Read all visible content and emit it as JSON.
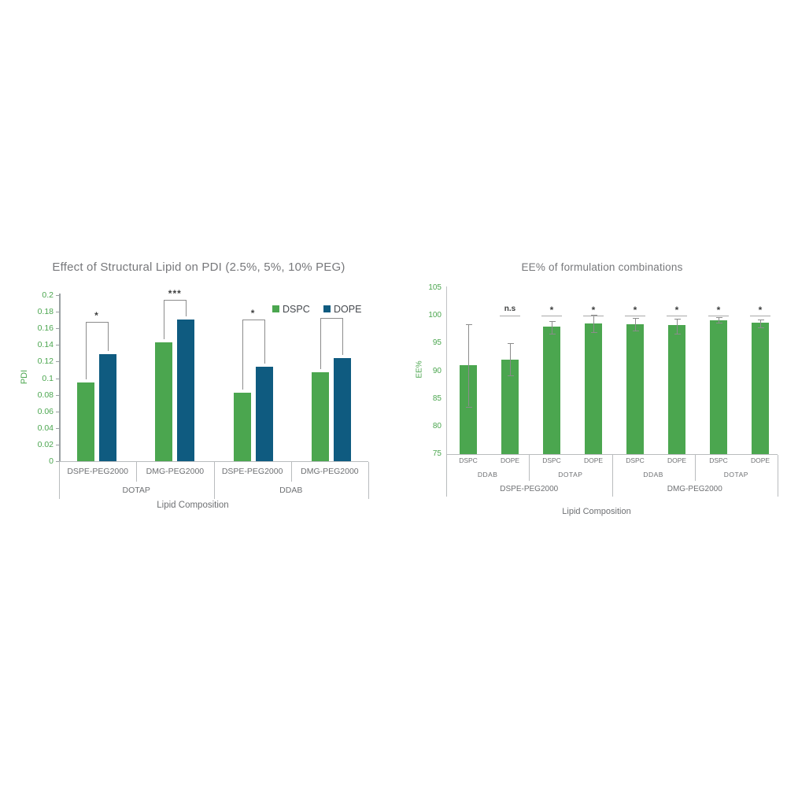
{
  "page": {
    "background": "#ffffff"
  },
  "colors": {
    "bar_green": "#4ba64f",
    "bar_blue": "#0f5b80",
    "title_gray": "#77787b",
    "label_gray": "#6e7073",
    "axis_gray": "#b9bcbe",
    "annotation_gray": "#8c8c8c",
    "sig_text": "#3f4040"
  },
  "chart_data": [
    {
      "id": "pdi-chart",
      "type": "bar",
      "title": "Effect of Structural Lipid on PDI (2.5%, 5%, 10% PEG)",
      "xlabel": "Lipid Composition",
      "ylabel": "PDI",
      "ylim": [
        0,
        0.2
      ],
      "ytick_labels": [
        "0",
        "0.02",
        "0.04",
        "0.06",
        "0.08",
        "0.1",
        "0.12",
        "0.14",
        "0.16",
        "0.18",
        "0.2"
      ],
      "grid": false,
      "legend_position": "top-right",
      "legend": [
        {
          "name": "DSPC",
          "color": "#4ba64f"
        },
        {
          "name": "DOPE",
          "color": "#0f5b80"
        }
      ],
      "series_names": [
        "DSPC",
        "DOPE"
      ],
      "groups": [
        {
          "label": "DSPE-PEG2000",
          "parent": "DOTAP",
          "DSPC": 0.095,
          "DOPE": 0.129,
          "significance": "*"
        },
        {
          "label": "DMG-PEG2000",
          "parent": "DOTAP",
          "DSPC": 0.143,
          "DOPE": 0.171,
          "significance": "***"
        },
        {
          "label": "DSPE-PEG2000",
          "parent": "DDAB",
          "DSPC": 0.082,
          "DOPE": 0.114,
          "significance": "*"
        },
        {
          "label": "DMG-PEG2000",
          "parent": "DDAB",
          "DSPC": 0.107,
          "DOPE": 0.124,
          "significance": ""
        }
      ],
      "parent_categories": [
        "DOTAP",
        "DDAB"
      ]
    },
    {
      "id": "ee-chart",
      "type": "bar",
      "title": "EE% of formulation combinations",
      "xlabel": "Lipid Composition",
      "ylabel": "EE%",
      "ylim": [
        75,
        105
      ],
      "ytick_labels": [
        "75",
        "80",
        "85",
        "90",
        "95",
        "100",
        "105"
      ],
      "grid": false,
      "bar_color": "#4ba64f",
      "bars": [
        {
          "label": "DSPC",
          "group": "DDAB",
          "peg": "DSPE-PEG2000",
          "value": 91.0,
          "err_up": 7.4,
          "err_down": 7.4,
          "significance": ""
        },
        {
          "label": "DOPE",
          "group": "DDAB",
          "peg": "DSPE-PEG2000",
          "value": 92.0,
          "err_up": 3.0,
          "err_down": 2.8,
          "significance": "n.s"
        },
        {
          "label": "DSPC",
          "group": "DOTAP",
          "peg": "DSPE-PEG2000",
          "value": 98.0,
          "err_up": 1.0,
          "err_down": 1.2,
          "significance": "*"
        },
        {
          "label": "DOPE",
          "group": "DOTAP",
          "peg": "DSPE-PEG2000",
          "value": 98.6,
          "err_up": 1.5,
          "err_down": 1.5,
          "significance": "*"
        },
        {
          "label": "DSPC",
          "group": "DDAB",
          "peg": "DMG-PEG2000",
          "value": 98.5,
          "err_up": 1.1,
          "err_down": 1.2,
          "significance": "*"
        },
        {
          "label": "DOPE",
          "group": "DDAB",
          "peg": "DMG-PEG2000",
          "value": 98.3,
          "err_up": 1.2,
          "err_down": 1.5,
          "significance": "*"
        },
        {
          "label": "DSPC",
          "group": "DOTAP",
          "peg": "DMG-PEG2000",
          "value": 99.2,
          "err_up": 0.5,
          "err_down": 0.5,
          "significance": "*"
        },
        {
          "label": "DOPE",
          "group": "DOTAP",
          "peg": "DMG-PEG2000",
          "value": 98.7,
          "err_up": 0.6,
          "err_down": 0.8,
          "significance": "*"
        }
      ],
      "group_categories": [
        "DDAB",
        "DOTAP",
        "DDAB",
        "DOTAP"
      ],
      "peg_categories": [
        "DSPE-PEG2000",
        "DMG-PEG2000"
      ]
    }
  ]
}
